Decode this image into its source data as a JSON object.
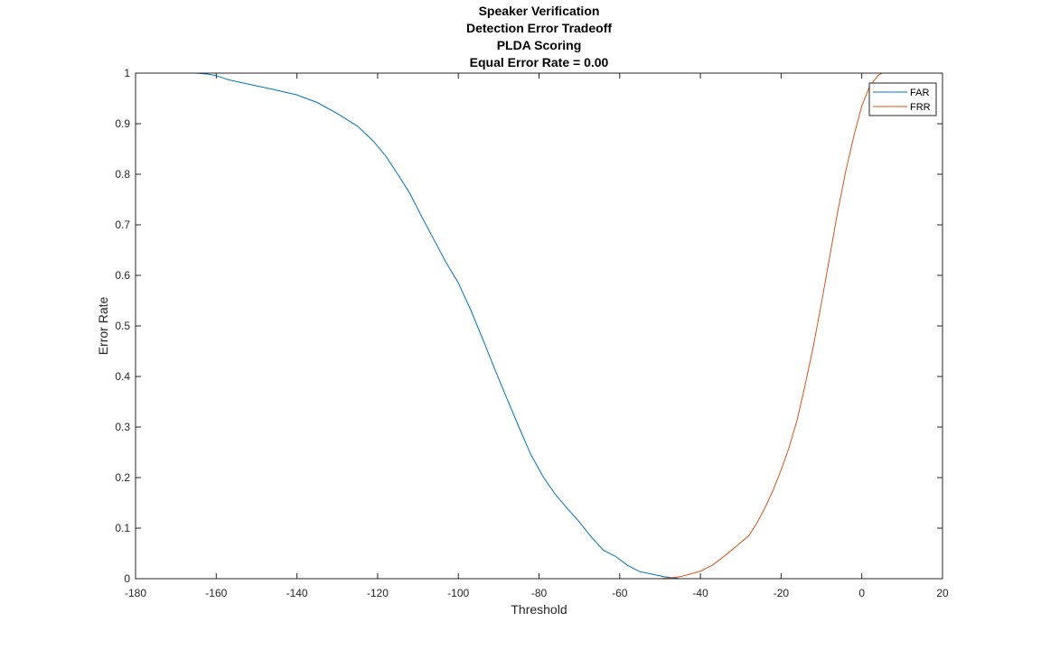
{
  "chart_data": {
    "type": "line",
    "title": [
      "Speaker Verification",
      "Detection Error Tradeoff",
      "PLDA Scoring",
      "Equal Error Rate = 0.00"
    ],
    "xlabel": "Threshold",
    "ylabel": "Error Rate",
    "xlim": [
      -180,
      20
    ],
    "ylim": [
      0,
      1
    ],
    "xticks": [
      -180,
      -160,
      -140,
      -120,
      -100,
      -80,
      -60,
      -40,
      -20,
      0,
      20
    ],
    "yticks": [
      0,
      0.1,
      0.2,
      0.3,
      0.4,
      0.5,
      0.6,
      0.7,
      0.8,
      0.9,
      1
    ],
    "xtick_labels": [
      "-180",
      "-160",
      "-140",
      "-120",
      "-100",
      "-80",
      "-60",
      "-40",
      "-20",
      "0",
      "20"
    ],
    "ytick_labels": [
      "0",
      "0.1",
      "0.2",
      "0.3",
      "0.4",
      "0.5",
      "0.6",
      "0.7",
      "0.8",
      "0.9",
      "1"
    ],
    "grid": false,
    "legend_position": "top-right",
    "series": [
      {
        "name": "FAR",
        "color": "#0072BD",
        "x": [
          -172,
          -165,
          -162,
          -160,
          -157,
          -152,
          -146,
          -140,
          -135,
          -130,
          -125,
          -121,
          -118,
          -115,
          -112,
          -109,
          -106,
          -103,
          -100,
          -97,
          -94,
          -91,
          -88,
          -85,
          -82,
          -79,
          -76,
          -73,
          -70,
          -67,
          -64,
          -61,
          -58,
          -55,
          -52,
          -49,
          -47,
          -45,
          5
        ],
        "y": [
          1.0,
          1.0,
          0.998,
          0.995,
          0.987,
          0.978,
          0.968,
          0.957,
          0.942,
          0.92,
          0.895,
          0.865,
          0.836,
          0.8,
          0.762,
          0.715,
          0.67,
          0.625,
          0.585,
          0.533,
          0.475,
          0.415,
          0.357,
          0.3,
          0.245,
          0.202,
          0.167,
          0.139,
          0.112,
          0.082,
          0.056,
          0.044,
          0.026,
          0.014,
          0.009,
          0.004,
          0.002,
          0.0,
          0.0
        ]
      },
      {
        "name": "FRR",
        "color": "#D95319",
        "x": [
          -172,
          -50,
          -47,
          -45,
          -43,
          -40,
          -37,
          -34,
          -31,
          -28,
          -26,
          -24,
          -22,
          -20,
          -18,
          -16,
          -14,
          -12,
          -10,
          -8,
          -6,
          -4,
          -2,
          0,
          2,
          4,
          5
        ],
        "y": [
          0.0,
          0.0,
          0.002,
          0.004,
          0.008,
          0.015,
          0.027,
          0.045,
          0.065,
          0.085,
          0.11,
          0.14,
          0.175,
          0.215,
          0.26,
          0.315,
          0.385,
          0.46,
          0.545,
          0.635,
          0.725,
          0.805,
          0.875,
          0.935,
          0.975,
          0.995,
          1.0
        ]
      }
    ]
  }
}
